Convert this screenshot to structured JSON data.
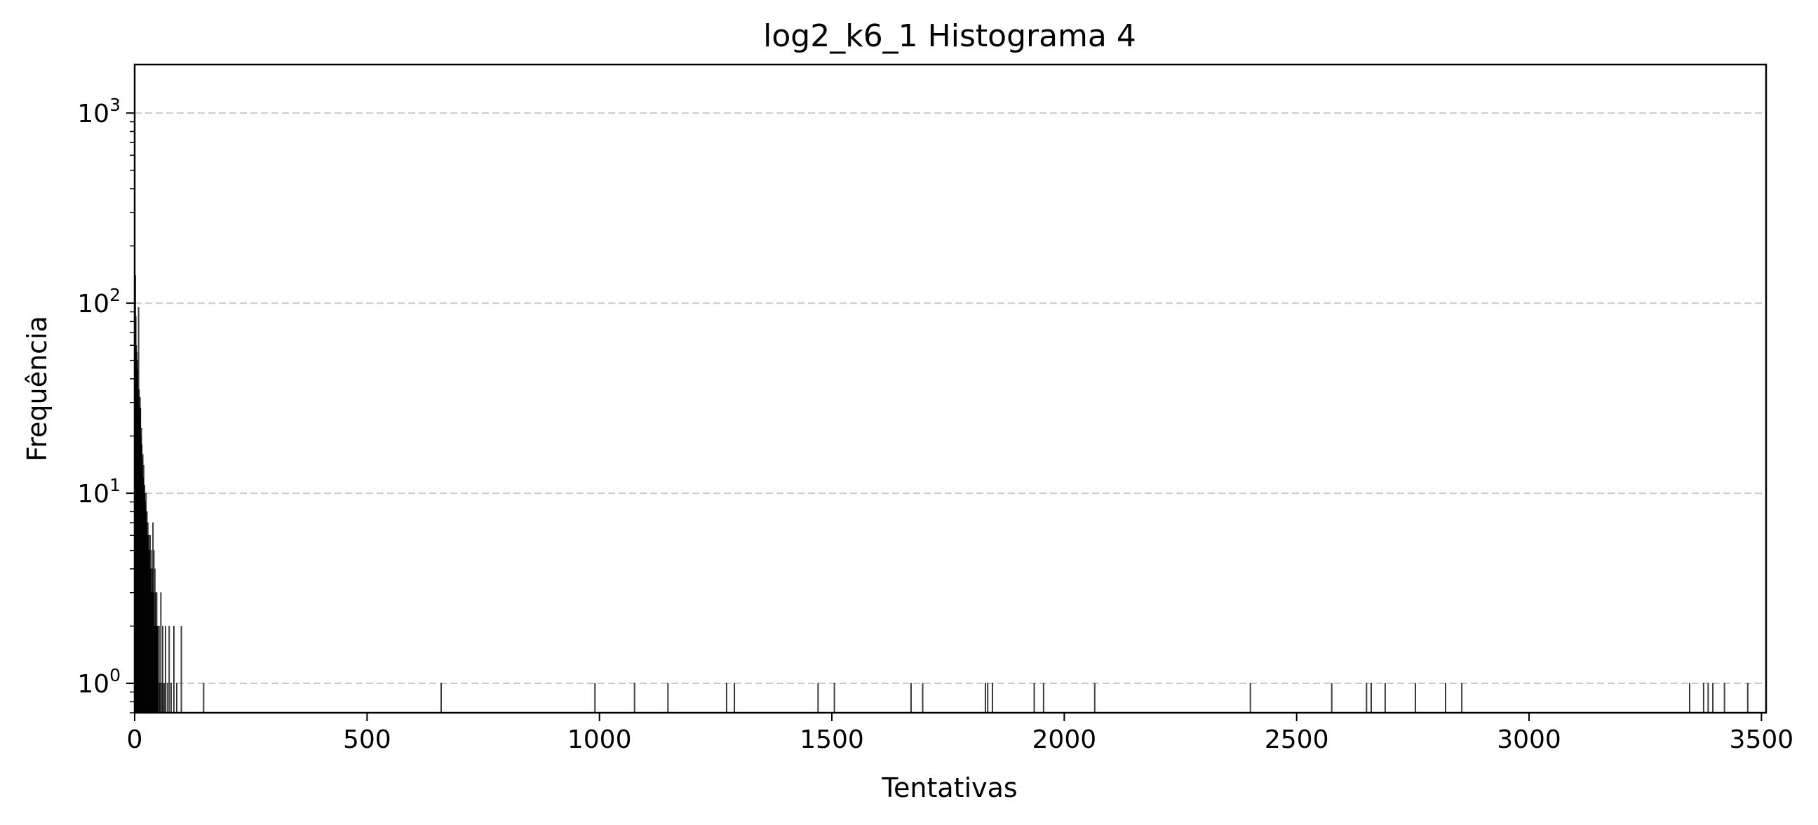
{
  "chart_data": {
    "type": "bar",
    "title": "log2_k6_1 Histograma 4",
    "xlabel": "Tentativas",
    "ylabel": "Frequência",
    "xlim": [
      0,
      3510
    ],
    "ylim": [
      0.7,
      1800
    ],
    "yscale": "log",
    "grid": "y dashed",
    "x_ticks": [
      0,
      500,
      1000,
      1500,
      2000,
      2500,
      3000,
      3500
    ],
    "x_tick_labels": [
      "0",
      "500",
      "1000",
      "1500",
      "2000",
      "2500",
      "3000",
      "3500"
    ],
    "y_ticks": [
      1,
      10,
      100,
      1000
    ],
    "y_tick_labels": [
      {
        "base": "10",
        "exp": "0"
      },
      {
        "base": "10",
        "exp": "1"
      },
      {
        "base": "10",
        "exp": "2"
      },
      {
        "base": "10",
        "exp": "3"
      }
    ],
    "bar_color": "#000000",
    "x": [
      1,
      2,
      3,
      4,
      5,
      6,
      7,
      8,
      9,
      10,
      11,
      12,
      13,
      14,
      15,
      16,
      17,
      18,
      19,
      20,
      21,
      22,
      23,
      24,
      25,
      26,
      27,
      28,
      29,
      30,
      31,
      32,
      33,
      34,
      35,
      36,
      37,
      38,
      39,
      40,
      41,
      42,
      43,
      44,
      45,
      46,
      47,
      48,
      49,
      50,
      52,
      54,
      56,
      58,
      60,
      63,
      66,
      70,
      74,
      78,
      84,
      90,
      100,
      148,
      659,
      990,
      1075,
      1147,
      1273,
      1290,
      1470,
      1505,
      1670,
      1695,
      1830,
      1835,
      1845,
      1935,
      1955,
      2065,
      2400,
      2575,
      2650,
      2660,
      2690,
      2755,
      2820,
      2855,
      3345,
      3375,
      3385,
      3395,
      3420,
      3470
    ],
    "values": [
      140,
      85,
      60,
      55,
      45,
      50,
      30,
      95,
      35,
      25,
      32,
      28,
      20,
      22,
      18,
      15,
      16,
      12,
      14,
      10,
      11,
      9,
      8,
      10,
      7,
      8,
      6,
      7,
      5,
      6,
      5,
      4,
      6,
      4,
      5,
      3,
      4,
      3,
      7,
      3,
      5,
      2,
      4,
      2,
      3,
      2,
      3,
      2,
      2,
      1,
      2,
      1,
      3,
      1,
      2,
      1,
      2,
      1,
      2,
      1,
      2,
      1,
      2,
      1,
      1,
      1,
      1,
      1,
      1,
      1,
      1,
      1,
      1,
      1,
      1,
      1,
      1,
      1,
      1,
      1,
      1,
      1,
      1,
      1,
      1,
      1,
      1,
      1,
      1,
      1,
      1,
      1,
      1,
      1
    ]
  }
}
